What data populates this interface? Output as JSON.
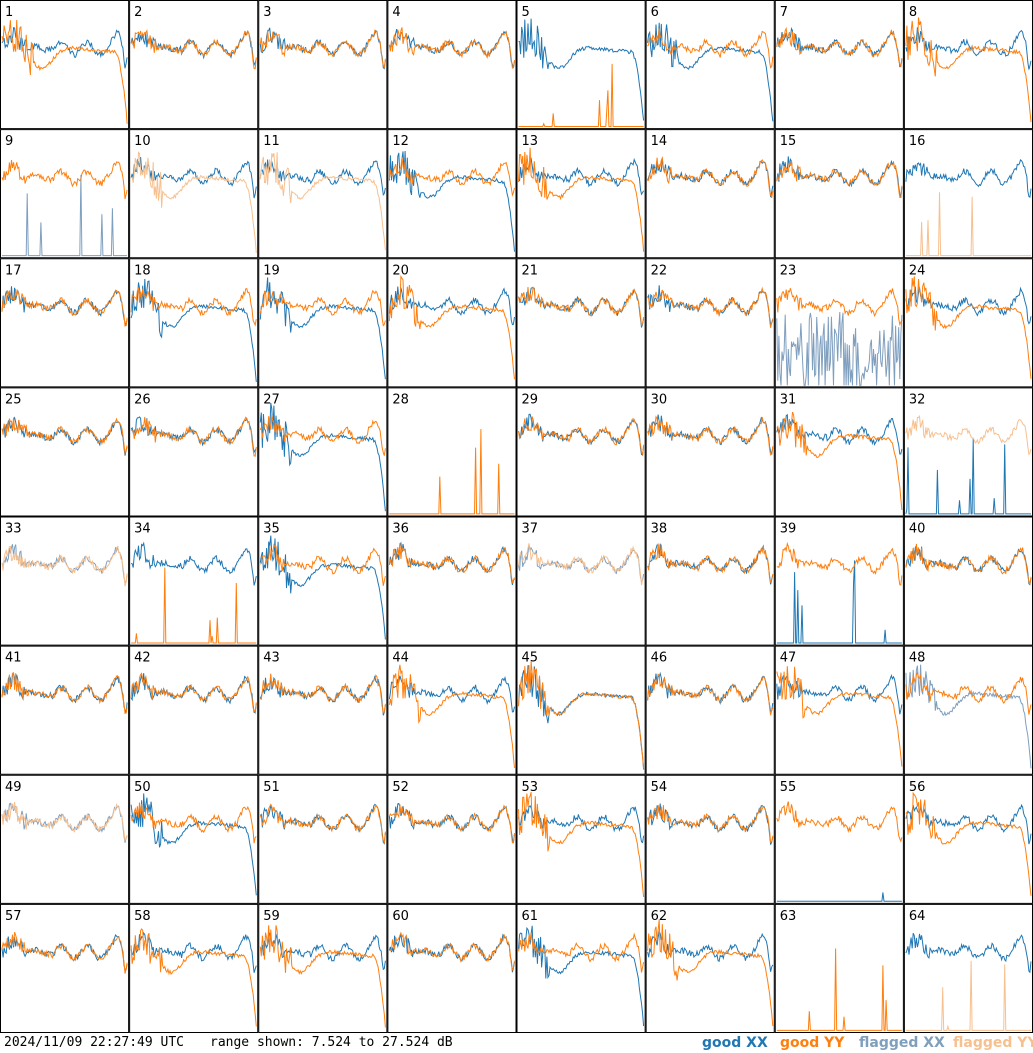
{
  "footer": {
    "timestamp": "2024/11/09 22:27:49 UTC",
    "range_text": "range shown: 7.524 to 27.524 dB"
  },
  "legend": [
    {
      "label": "good XX",
      "color": "#1f77b4"
    },
    {
      "label": "good YY",
      "color": "#ff7f0e"
    },
    {
      "label": "flagged XX",
      "color": "#7f9fbf"
    },
    {
      "label": "flagged YY",
      "color": "#f7c08f"
    }
  ],
  "chart_data": {
    "type": "line",
    "ylim": [
      7.524,
      27.524
    ],
    "grid_rows": 8,
    "grid_cols": 8,
    "panels": [
      {
        "id": "1",
        "xx": "good",
        "yy": "good",
        "xx_shape": "typical",
        "yy_shape": "drop"
      },
      {
        "id": "2",
        "xx": "good",
        "yy": "good",
        "xx_shape": "typical",
        "yy_shape": "typical"
      },
      {
        "id": "3",
        "xx": "good",
        "yy": "good",
        "xx_shape": "typical",
        "yy_shape": "typical"
      },
      {
        "id": "4",
        "xx": "good",
        "yy": "good",
        "xx_shape": "typical",
        "yy_shape": "typical"
      },
      {
        "id": "5",
        "xx": "good",
        "yy": "good",
        "xx_shape": "drop",
        "yy_shape": "low"
      },
      {
        "id": "6",
        "xx": "good",
        "yy": "good",
        "xx_shape": "drop",
        "yy_shape": "typical"
      },
      {
        "id": "7",
        "xx": "good",
        "yy": "good",
        "xx_shape": "typical",
        "yy_shape": "typical"
      },
      {
        "id": "8",
        "xx": "good",
        "yy": "good",
        "xx_shape": "typical",
        "yy_shape": "drop"
      },
      {
        "id": "9",
        "xx": "flagged",
        "yy": "good",
        "xx_shape": "low",
        "yy_shape": "typical"
      },
      {
        "id": "10",
        "xx": "good",
        "yy": "flagged",
        "xx_shape": "typical",
        "yy_shape": "drop"
      },
      {
        "id": "11",
        "xx": "good",
        "yy": "flagged",
        "xx_shape": "typical",
        "yy_shape": "drop"
      },
      {
        "id": "12",
        "xx": "good",
        "yy": "good",
        "xx_shape": "drop",
        "yy_shape": "typical"
      },
      {
        "id": "13",
        "xx": "good",
        "yy": "good",
        "xx_shape": "typical",
        "yy_shape": "drop"
      },
      {
        "id": "14",
        "xx": "good",
        "yy": "good",
        "xx_shape": "typical",
        "yy_shape": "typical"
      },
      {
        "id": "15",
        "xx": "good",
        "yy": "good",
        "xx_shape": "typical",
        "yy_shape": "typical"
      },
      {
        "id": "16",
        "xx": "good",
        "yy": "flagged",
        "xx_shape": "typical",
        "yy_shape": "low"
      },
      {
        "id": "17",
        "xx": "good",
        "yy": "good",
        "xx_shape": "typical",
        "yy_shape": "typical"
      },
      {
        "id": "18",
        "xx": "good",
        "yy": "good",
        "xx_shape": "drop",
        "yy_shape": "typical"
      },
      {
        "id": "19",
        "xx": "good",
        "yy": "good",
        "xx_shape": "drop",
        "yy_shape": "typical"
      },
      {
        "id": "20",
        "xx": "good",
        "yy": "good",
        "xx_shape": "typical",
        "yy_shape": "drop"
      },
      {
        "id": "21",
        "xx": "good",
        "yy": "good",
        "xx_shape": "typical",
        "yy_shape": "typical"
      },
      {
        "id": "22",
        "xx": "good",
        "yy": "good",
        "xx_shape": "typical",
        "yy_shape": "typical"
      },
      {
        "id": "23",
        "xx": "flagged",
        "yy": "good",
        "xx_shape": "noise",
        "yy_shape": "typical"
      },
      {
        "id": "24",
        "xx": "good",
        "yy": "good",
        "xx_shape": "typical",
        "yy_shape": "drop"
      },
      {
        "id": "25",
        "xx": "good",
        "yy": "good",
        "xx_shape": "typical",
        "yy_shape": "typical"
      },
      {
        "id": "26",
        "xx": "good",
        "yy": "good",
        "xx_shape": "typical",
        "yy_shape": "typical"
      },
      {
        "id": "27",
        "xx": "good",
        "yy": "good",
        "xx_shape": "drop",
        "yy_shape": "typical"
      },
      {
        "id": "28",
        "xx": "good",
        "yy": "good",
        "xx_shape": "none",
        "yy_shape": "low"
      },
      {
        "id": "29",
        "xx": "good",
        "yy": "good",
        "xx_shape": "typical",
        "yy_shape": "typical"
      },
      {
        "id": "30",
        "xx": "good",
        "yy": "good",
        "xx_shape": "typical",
        "yy_shape": "typical"
      },
      {
        "id": "31",
        "xx": "good",
        "yy": "good",
        "xx_shape": "typical",
        "yy_shape": "drop"
      },
      {
        "id": "32",
        "xx": "good",
        "yy": "flagged",
        "xx_shape": "low",
        "yy_shape": "typical"
      },
      {
        "id": "33",
        "xx": "flagged",
        "yy": "flagged",
        "xx_shape": "typical",
        "yy_shape": "typical"
      },
      {
        "id": "34",
        "xx": "good",
        "yy": "good",
        "xx_shape": "typical",
        "yy_shape": "low"
      },
      {
        "id": "35",
        "xx": "good",
        "yy": "good",
        "xx_shape": "drop",
        "yy_shape": "typical"
      },
      {
        "id": "36",
        "xx": "good",
        "yy": "good",
        "xx_shape": "typical",
        "yy_shape": "typical"
      },
      {
        "id": "37",
        "xx": "flagged",
        "yy": "flagged",
        "xx_shape": "typical",
        "yy_shape": "typical"
      },
      {
        "id": "38",
        "xx": "good",
        "yy": "good",
        "xx_shape": "typical",
        "yy_shape": "typical"
      },
      {
        "id": "39",
        "xx": "good",
        "yy": "good",
        "xx_shape": "low",
        "yy_shape": "typical"
      },
      {
        "id": "40",
        "xx": "good",
        "yy": "good",
        "xx_shape": "typical",
        "yy_shape": "typical"
      },
      {
        "id": "41",
        "xx": "good",
        "yy": "good",
        "xx_shape": "typical",
        "yy_shape": "typical"
      },
      {
        "id": "42",
        "xx": "good",
        "yy": "good",
        "xx_shape": "typical",
        "yy_shape": "typical"
      },
      {
        "id": "43",
        "xx": "good",
        "yy": "good",
        "xx_shape": "typical",
        "yy_shape": "typical"
      },
      {
        "id": "44",
        "xx": "good",
        "yy": "good",
        "xx_shape": "typical",
        "yy_shape": "drop"
      },
      {
        "id": "45",
        "xx": "good",
        "yy": "good",
        "xx_shape": "drop",
        "yy_shape": "drop"
      },
      {
        "id": "46",
        "xx": "good",
        "yy": "good",
        "xx_shape": "typical",
        "yy_shape": "typical"
      },
      {
        "id": "47",
        "xx": "good",
        "yy": "good",
        "xx_shape": "typical",
        "yy_shape": "drop"
      },
      {
        "id": "48",
        "xx": "flagged",
        "yy": "good",
        "xx_shape": "drop",
        "yy_shape": "typical"
      },
      {
        "id": "49",
        "xx": "flagged",
        "yy": "flagged",
        "xx_shape": "typical",
        "yy_shape": "typical"
      },
      {
        "id": "50",
        "xx": "good",
        "yy": "good",
        "xx_shape": "drop",
        "yy_shape": "typical"
      },
      {
        "id": "51",
        "xx": "good",
        "yy": "good",
        "xx_shape": "typical",
        "yy_shape": "typical"
      },
      {
        "id": "52",
        "xx": "good",
        "yy": "good",
        "xx_shape": "typical",
        "yy_shape": "typical"
      },
      {
        "id": "53",
        "xx": "good",
        "yy": "good",
        "xx_shape": "typical",
        "yy_shape": "drop"
      },
      {
        "id": "54",
        "xx": "good",
        "yy": "good",
        "xx_shape": "typical",
        "yy_shape": "typical"
      },
      {
        "id": "55",
        "xx": "good",
        "yy": "good",
        "xx_shape": "low",
        "yy_shape": "typical"
      },
      {
        "id": "56",
        "xx": "good",
        "yy": "good",
        "xx_shape": "typical",
        "yy_shape": "drop"
      },
      {
        "id": "57",
        "xx": "good",
        "yy": "good",
        "xx_shape": "typical",
        "yy_shape": "typical"
      },
      {
        "id": "58",
        "xx": "good",
        "yy": "good",
        "xx_shape": "typical",
        "yy_shape": "drop"
      },
      {
        "id": "59",
        "xx": "good",
        "yy": "good",
        "xx_shape": "typical",
        "yy_shape": "drop"
      },
      {
        "id": "60",
        "xx": "good",
        "yy": "good",
        "xx_shape": "typical",
        "yy_shape": "typical"
      },
      {
        "id": "61",
        "xx": "good",
        "yy": "good",
        "xx_shape": "drop",
        "yy_shape": "typical"
      },
      {
        "id": "62",
        "xx": "good",
        "yy": "good",
        "xx_shape": "typical",
        "yy_shape": "drop"
      },
      {
        "id": "63",
        "xx": "good",
        "yy": "good",
        "xx_shape": "none",
        "yy_shape": "low"
      },
      {
        "id": "64",
        "xx": "good",
        "yy": "flagged",
        "xx_shape": "typical",
        "yy_shape": "low"
      }
    ]
  }
}
